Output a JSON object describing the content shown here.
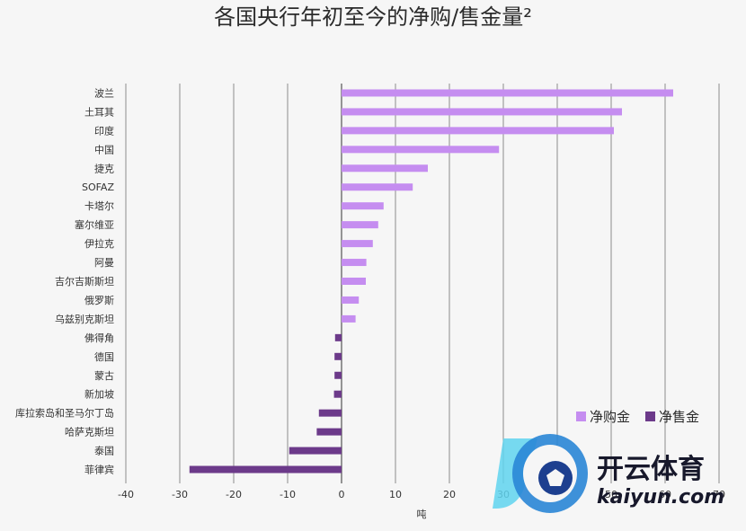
{
  "chart_data": {
    "type": "bar",
    "orientation": "horizontal",
    "title": "各国央行年初至今的净购/售金量²",
    "xlabel": "吨",
    "xlim": [
      -40,
      70
    ],
    "xticks": [
      -40,
      -30,
      -20,
      -10,
      0,
      10,
      20,
      30,
      40,
      50,
      60,
      70
    ],
    "grid": true,
    "legend_position": "bottom-right",
    "categories": [
      "波兰",
      "土耳其",
      "印度",
      "中国",
      "捷克",
      "SOFAZ",
      "卡塔尔",
      "塞尔维亚",
      "伊拉克",
      "阿曼",
      "吉尔吉斯斯坦",
      "俄罗斯",
      "乌兹别克斯坦",
      "佛得角",
      "德国",
      "蒙古",
      "新加坡",
      "库拉索岛和圣马尔丁岛",
      "哈萨克斯坦",
      "泰国",
      "菲律宾"
    ],
    "values": [
      61.5,
      52,
      50.5,
      29.2,
      16,
      13.2,
      7.8,
      6.8,
      5.8,
      4.6,
      4.5,
      3.2,
      2.6,
      -1.2,
      -1.3,
      -1.3,
      -1.4,
      -4.2,
      -4.6,
      -9.7,
      -28.2
    ],
    "series": [
      {
        "name": "净购金",
        "color": "#c58df0"
      },
      {
        "name": "净售金",
        "color": "#6c3a8a"
      }
    ]
  },
  "watermark": {
    "brand": "开云体育",
    "url": "kaiyun.com"
  }
}
